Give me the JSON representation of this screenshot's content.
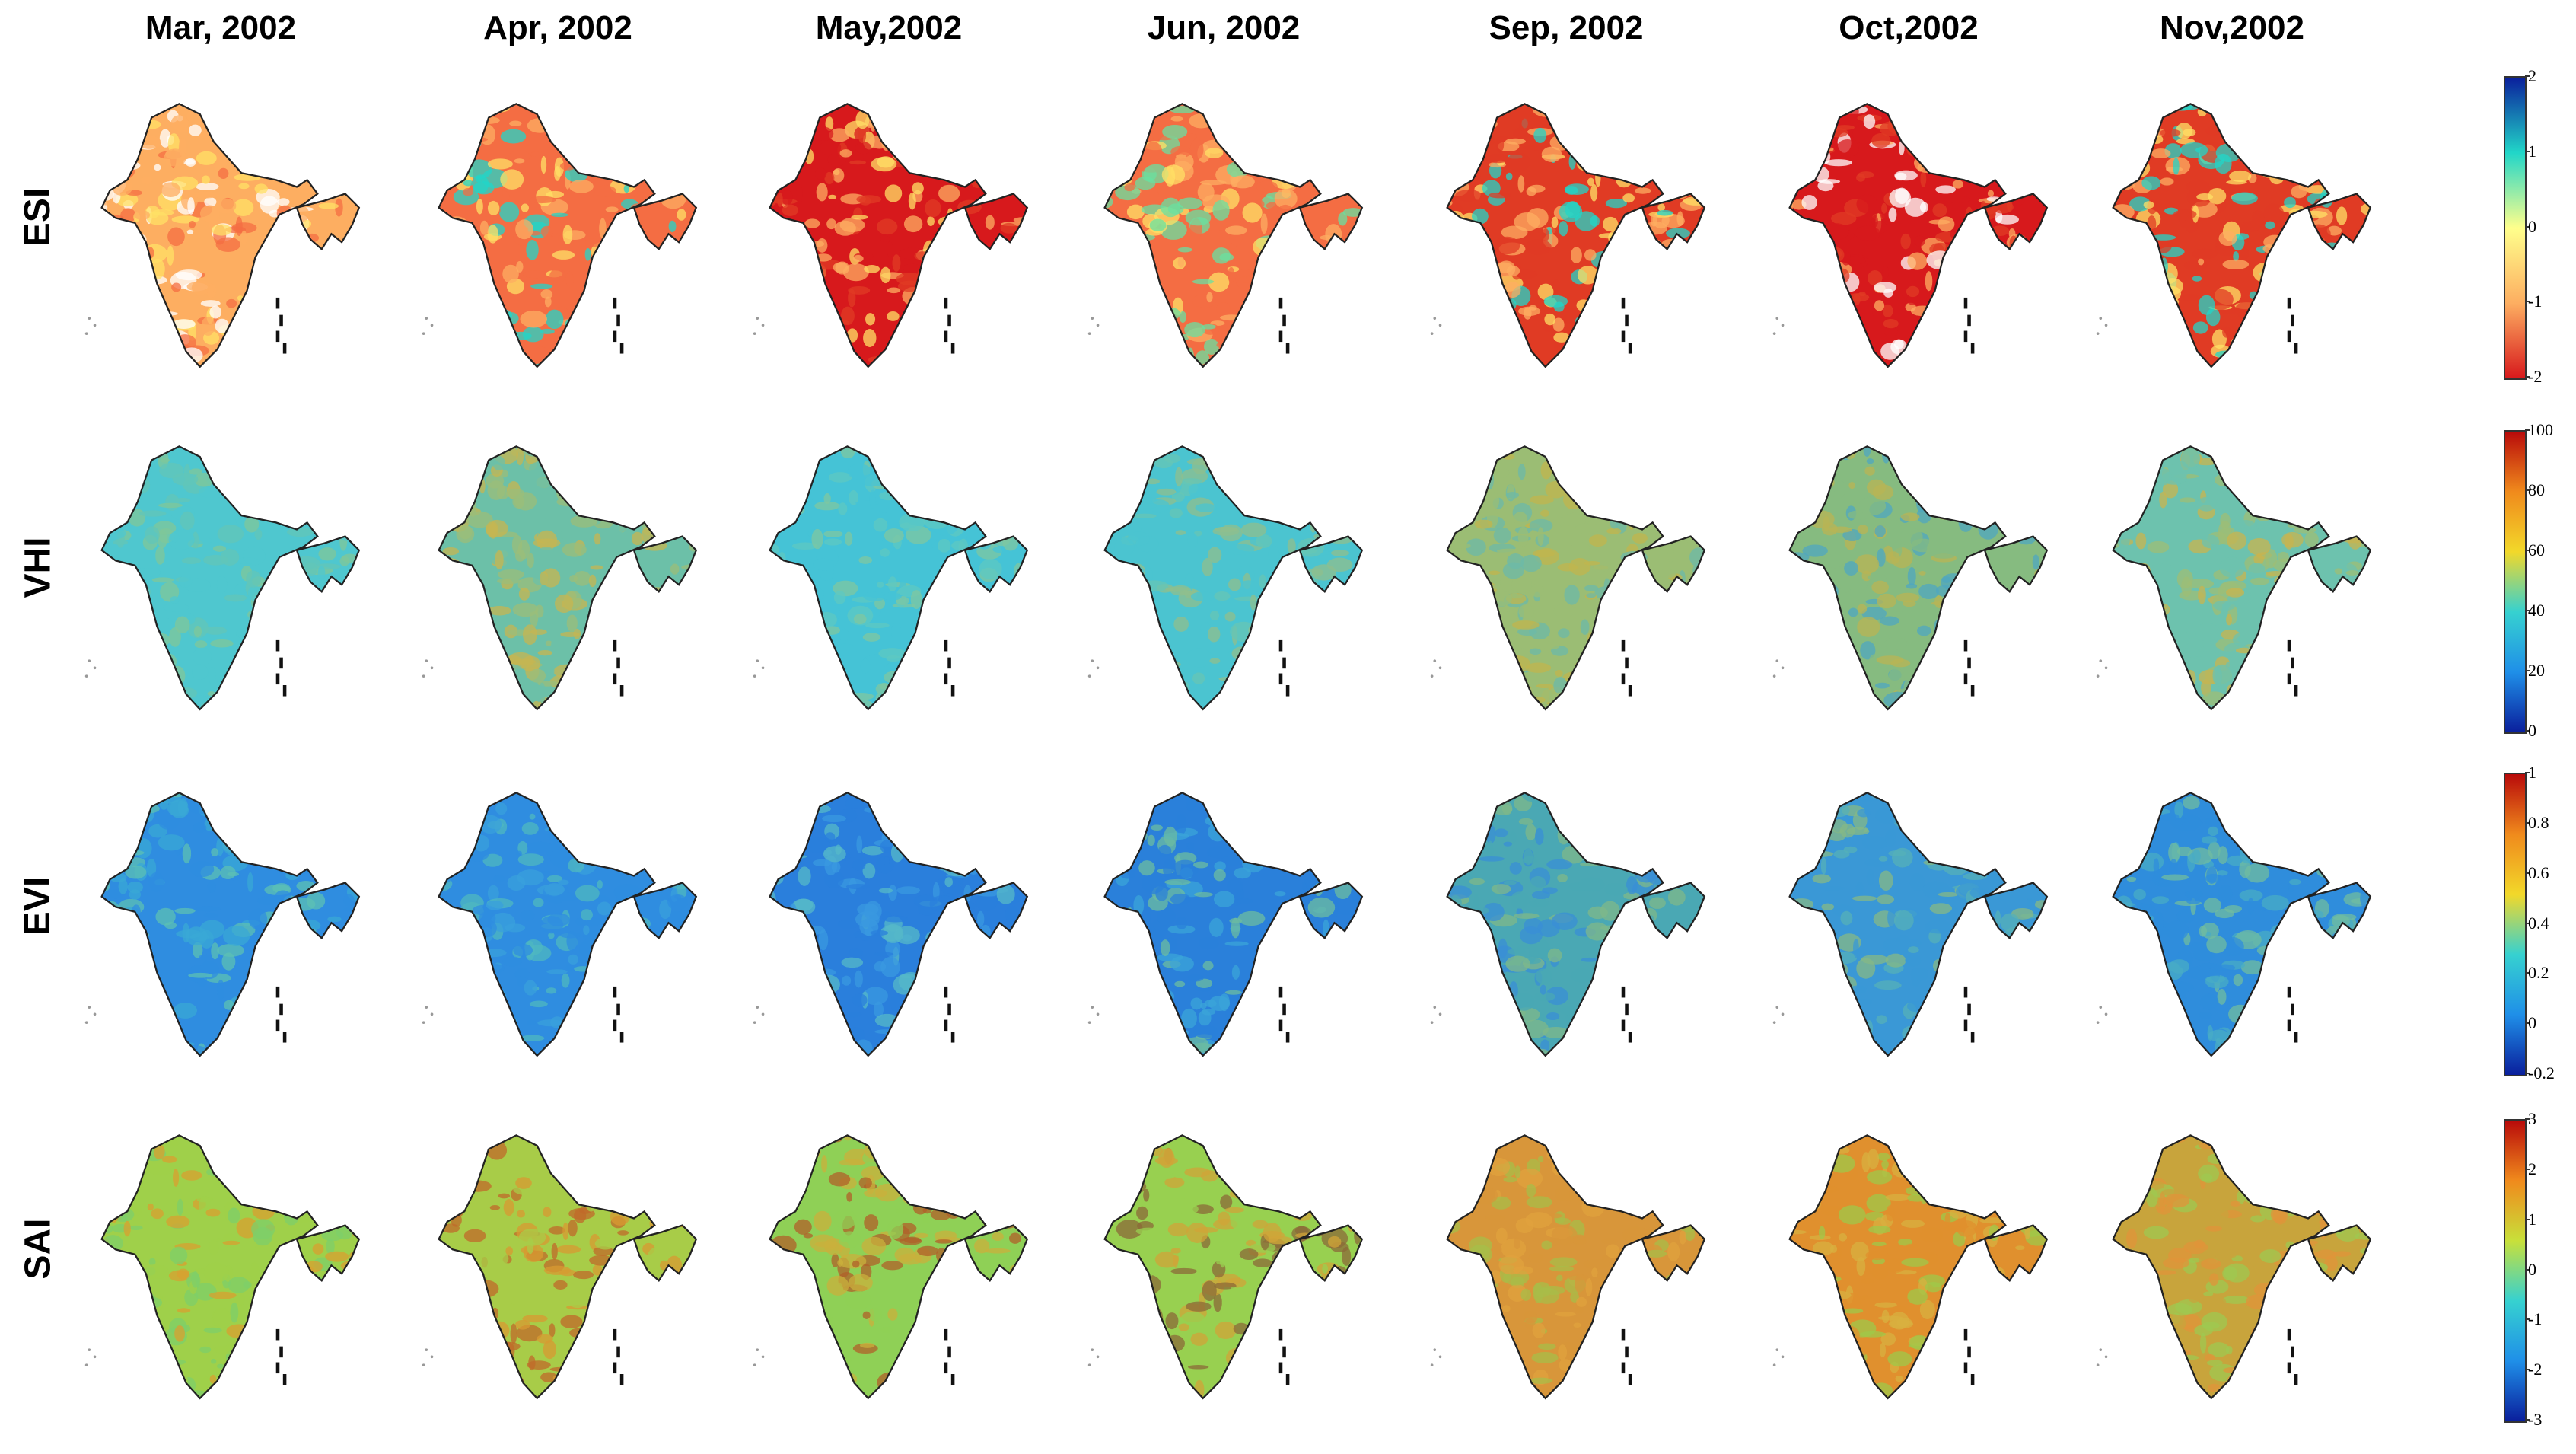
{
  "months": [
    "Mar, 2002",
    "Apr, 2002",
    "May,2002",
    "Jun, 2002",
    "Sep, 2002",
    "Oct,2002",
    "Nov,2002"
  ],
  "rows": [
    {
      "label": "ESI",
      "colorbar_ticks": [
        "2",
        "1",
        "0",
        "-1",
        "-2"
      ],
      "palette": [
        "#d7191c",
        "#fdae61",
        "#ffff8c",
        "#21d6c8",
        "#0a1f9c"
      ],
      "map_tones": [
        [
          "#fdae61",
          "#f46d43",
          "#ffe066",
          "#ffffff"
        ],
        [
          "#f46d43",
          "#fdae61",
          "#ffe066",
          "#21d6c8"
        ],
        [
          "#d7191c",
          "#e03b24",
          "#fdae61",
          "#ffe066"
        ],
        [
          "#f46d43",
          "#fdae61",
          "#ffe066",
          "#69e0a0"
        ],
        [
          "#e03b24",
          "#fdae61",
          "#ffe066",
          "#21d6c8"
        ],
        [
          "#d7191c",
          "#e03b24",
          "#fdae61",
          "#ffffff"
        ],
        [
          "#e03b24",
          "#fdae61",
          "#ffe066",
          "#21d6c8"
        ]
      ]
    },
    {
      "label": "VHI",
      "colorbar_ticks": [
        "100",
        "80",
        "60",
        "40",
        "20",
        "0"
      ],
      "palette": [
        "#0a1f9c",
        "#1f8fe8",
        "#36d1d0",
        "#f2d82a",
        "#f08a1c",
        "#b80a0a"
      ],
      "map_tones": [
        [
          "#4fc7cf",
          "#62c6b8",
          "#7fc79a"
        ],
        [
          "#6cc0a8",
          "#9bbd7a",
          "#c5b652"
        ],
        [
          "#45c3d6",
          "#5ec8c2",
          "#7fc7a0"
        ],
        [
          "#4bc4d0",
          "#65c5b6",
          "#8fbf8e"
        ],
        [
          "#9bbd74",
          "#c0b54e",
          "#6cb9a8"
        ],
        [
          "#86bb80",
          "#b8b454",
          "#4fa7c0"
        ],
        [
          "#6dc2ae",
          "#9dbd76",
          "#c8b44f"
        ]
      ]
    },
    {
      "label": "EVI",
      "colorbar_ticks": [
        "1",
        "0.8",
        "0.6",
        "0.4",
        "0.2",
        "0",
        "-0.2"
      ],
      "palette": [
        "#0a1f9c",
        "#1f8fe8",
        "#36d1d0",
        "#f2d82a",
        "#f08a1c",
        "#b80a0a"
      ],
      "map_tones": [
        [
          "#2f8de0",
          "#3aa8d6",
          "#5cc0b4"
        ],
        [
          "#2f8de0",
          "#3aa0dc",
          "#4fb8c0"
        ],
        [
          "#2a7fdc",
          "#3a98e0",
          "#55b8c8"
        ],
        [
          "#2a80da",
          "#3ba4d8",
          "#6cbca0"
        ],
        [
          "#4aa8b4",
          "#7fb88a",
          "#3a8fd6"
        ],
        [
          "#3a98d6",
          "#55b0b8",
          "#86b886"
        ],
        [
          "#2f8ddc",
          "#48acc6",
          "#70bca0"
        ]
      ]
    },
    {
      "label": "SAI",
      "colorbar_ticks": [
        "3",
        "2",
        "1",
        "0",
        "-1",
        "-2",
        "-3"
      ],
      "palette": [
        "#0a1f9c",
        "#1f8fe8",
        "#36d1d0",
        "#c8e03a",
        "#f08a1c",
        "#b80a0a"
      ],
      "map_tones": [
        [
          "#9fd04a",
          "#d8a030",
          "#7dcf6a"
        ],
        [
          "#a8cc48",
          "#d89a32",
          "#c06a2a"
        ],
        [
          "#8fd056",
          "#c9b03c",
          "#b0602a"
        ],
        [
          "#98d050",
          "#d0a438",
          "#8b6a38"
        ],
        [
          "#d8963a",
          "#e0a23e",
          "#a8bc48"
        ],
        [
          "#e0902e",
          "#d8b040",
          "#9fc84a"
        ],
        [
          "#c8a43c",
          "#e0943a",
          "#9fc850"
        ]
      ]
    }
  ]
}
